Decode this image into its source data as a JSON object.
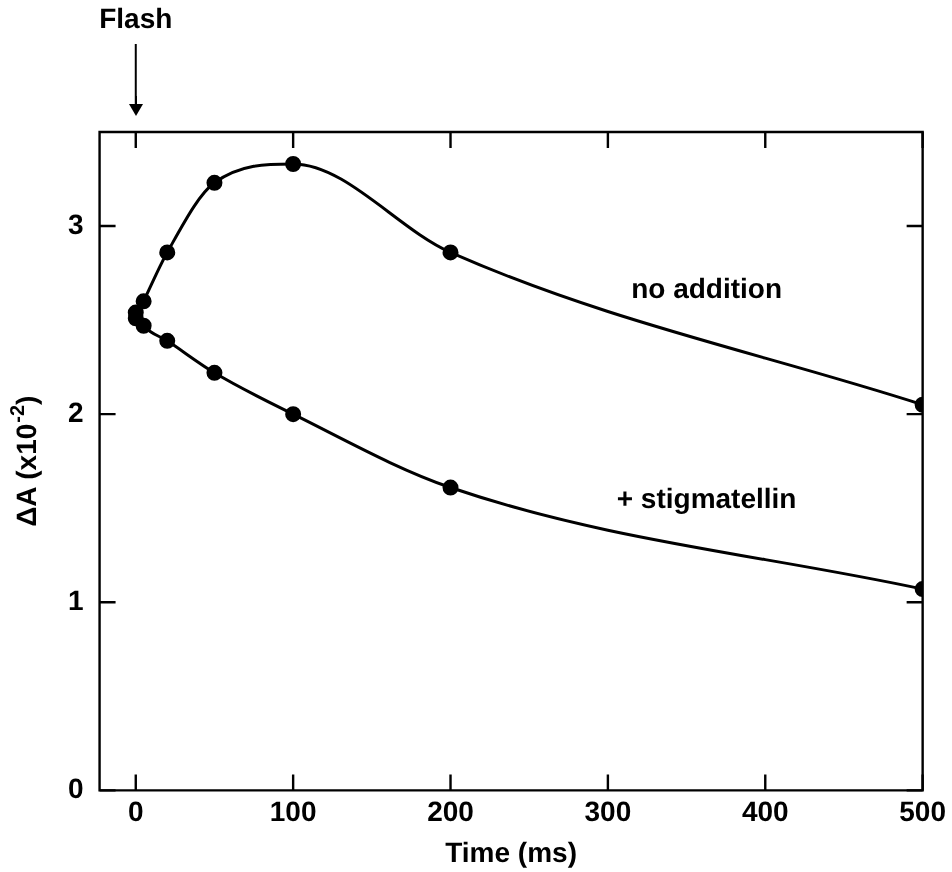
{
  "chart_data": {
    "type": "line",
    "xlabel": "Time (ms)",
    "ylabel": "ΔA (x10$^{-2}$)",
    "xlim": [
      -23,
      500
    ],
    "xticks": [
      0,
      100,
      200,
      300,
      400,
      500
    ],
    "ylim": [
      0,
      3.5
    ],
    "yticks": [
      0,
      1,
      2,
      3
    ],
    "grid": false,
    "legend": false,
    "marker": "circle",
    "line_style": "solid",
    "annotations": [
      {
        "text": "Flash",
        "x": 0
      }
    ],
    "series": [
      {
        "name": "no addition",
        "color": "#000000",
        "x": [
          0,
          5,
          20,
          50,
          100,
          200,
          500
        ],
        "values": [
          2.51,
          2.6,
          2.86,
          3.23,
          3.33,
          2.86,
          2.05
        ]
      },
      {
        "name": "+ stigmatellin",
        "color": "#000000",
        "x": [
          0,
          5,
          20,
          50,
          100,
          200,
          500
        ],
        "values": [
          2.54,
          2.47,
          2.39,
          2.22,
          2.0,
          1.61,
          1.07
        ]
      }
    ]
  }
}
